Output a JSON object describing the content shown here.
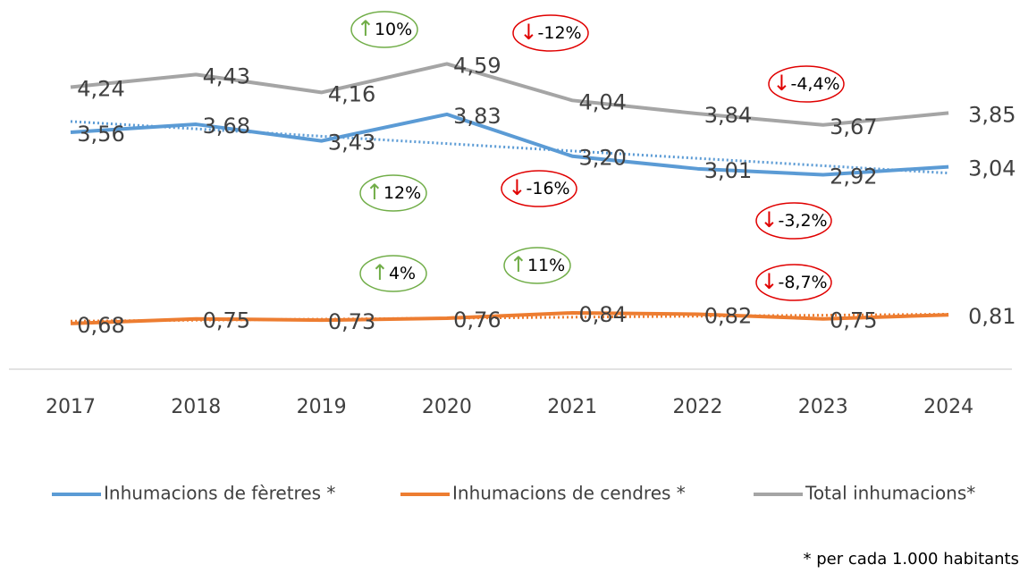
{
  "chart_data": {
    "type": "line",
    "categories": [
      "2017",
      "2018",
      "2019",
      "2020",
      "2021",
      "2022",
      "2023",
      "2024"
    ],
    "series": [
      {
        "name": "Inhumacions de fèretres *",
        "color": "#5b9bd5",
        "trendline": true,
        "values": [
          3.56,
          3.68,
          3.43,
          3.83,
          3.2,
          3.01,
          2.92,
          3.04
        ],
        "value_labels": [
          "3,56",
          "3,68",
          "3,43",
          "3,83",
          "3,20",
          "3,01",
          "2,92",
          "3,04"
        ]
      },
      {
        "name": "Inhumacions de cendres *",
        "color": "#ed7d31",
        "trendline": true,
        "values": [
          0.68,
          0.75,
          0.73,
          0.76,
          0.84,
          0.82,
          0.75,
          0.81
        ],
        "value_labels": [
          "0,68",
          "0,75",
          "0,73",
          "0,76",
          "0,84",
          "0,82",
          "0,75",
          "0,81"
        ]
      },
      {
        "name": "Total inhumacions*",
        "color": "#a5a5a5",
        "trendline": false,
        "values": [
          4.24,
          4.43,
          4.16,
          4.59,
          4.04,
          3.84,
          3.67,
          3.85
        ],
        "value_labels": [
          "4,24",
          "4,43",
          "4,16",
          "4,59",
          "4,04",
          "3,84",
          "3,67",
          "3,85"
        ]
      }
    ],
    "ylim": [
      0,
      5
    ],
    "legend": "bottom",
    "annotations": [
      {
        "text": "↑10%",
        "color": "#70ad47"
      },
      {
        "text": "↓-12%",
        "color": "#e00000"
      },
      {
        "text": "↓-4,4%",
        "color": "#e00000"
      },
      {
        "text": "↑12%",
        "color": "#70ad47"
      },
      {
        "text": "↓-16%",
        "color": "#e00000"
      },
      {
        "text": "↓-3,2%",
        "color": "#e00000"
      },
      {
        "text": "↑4%",
        "color": "#70ad47"
      },
      {
        "text": "↑11%",
        "color": "#70ad47"
      },
      {
        "text": "↓-8,7%",
        "color": "#e00000"
      }
    ],
    "footnote": "* per cada 1.000 habitants"
  }
}
